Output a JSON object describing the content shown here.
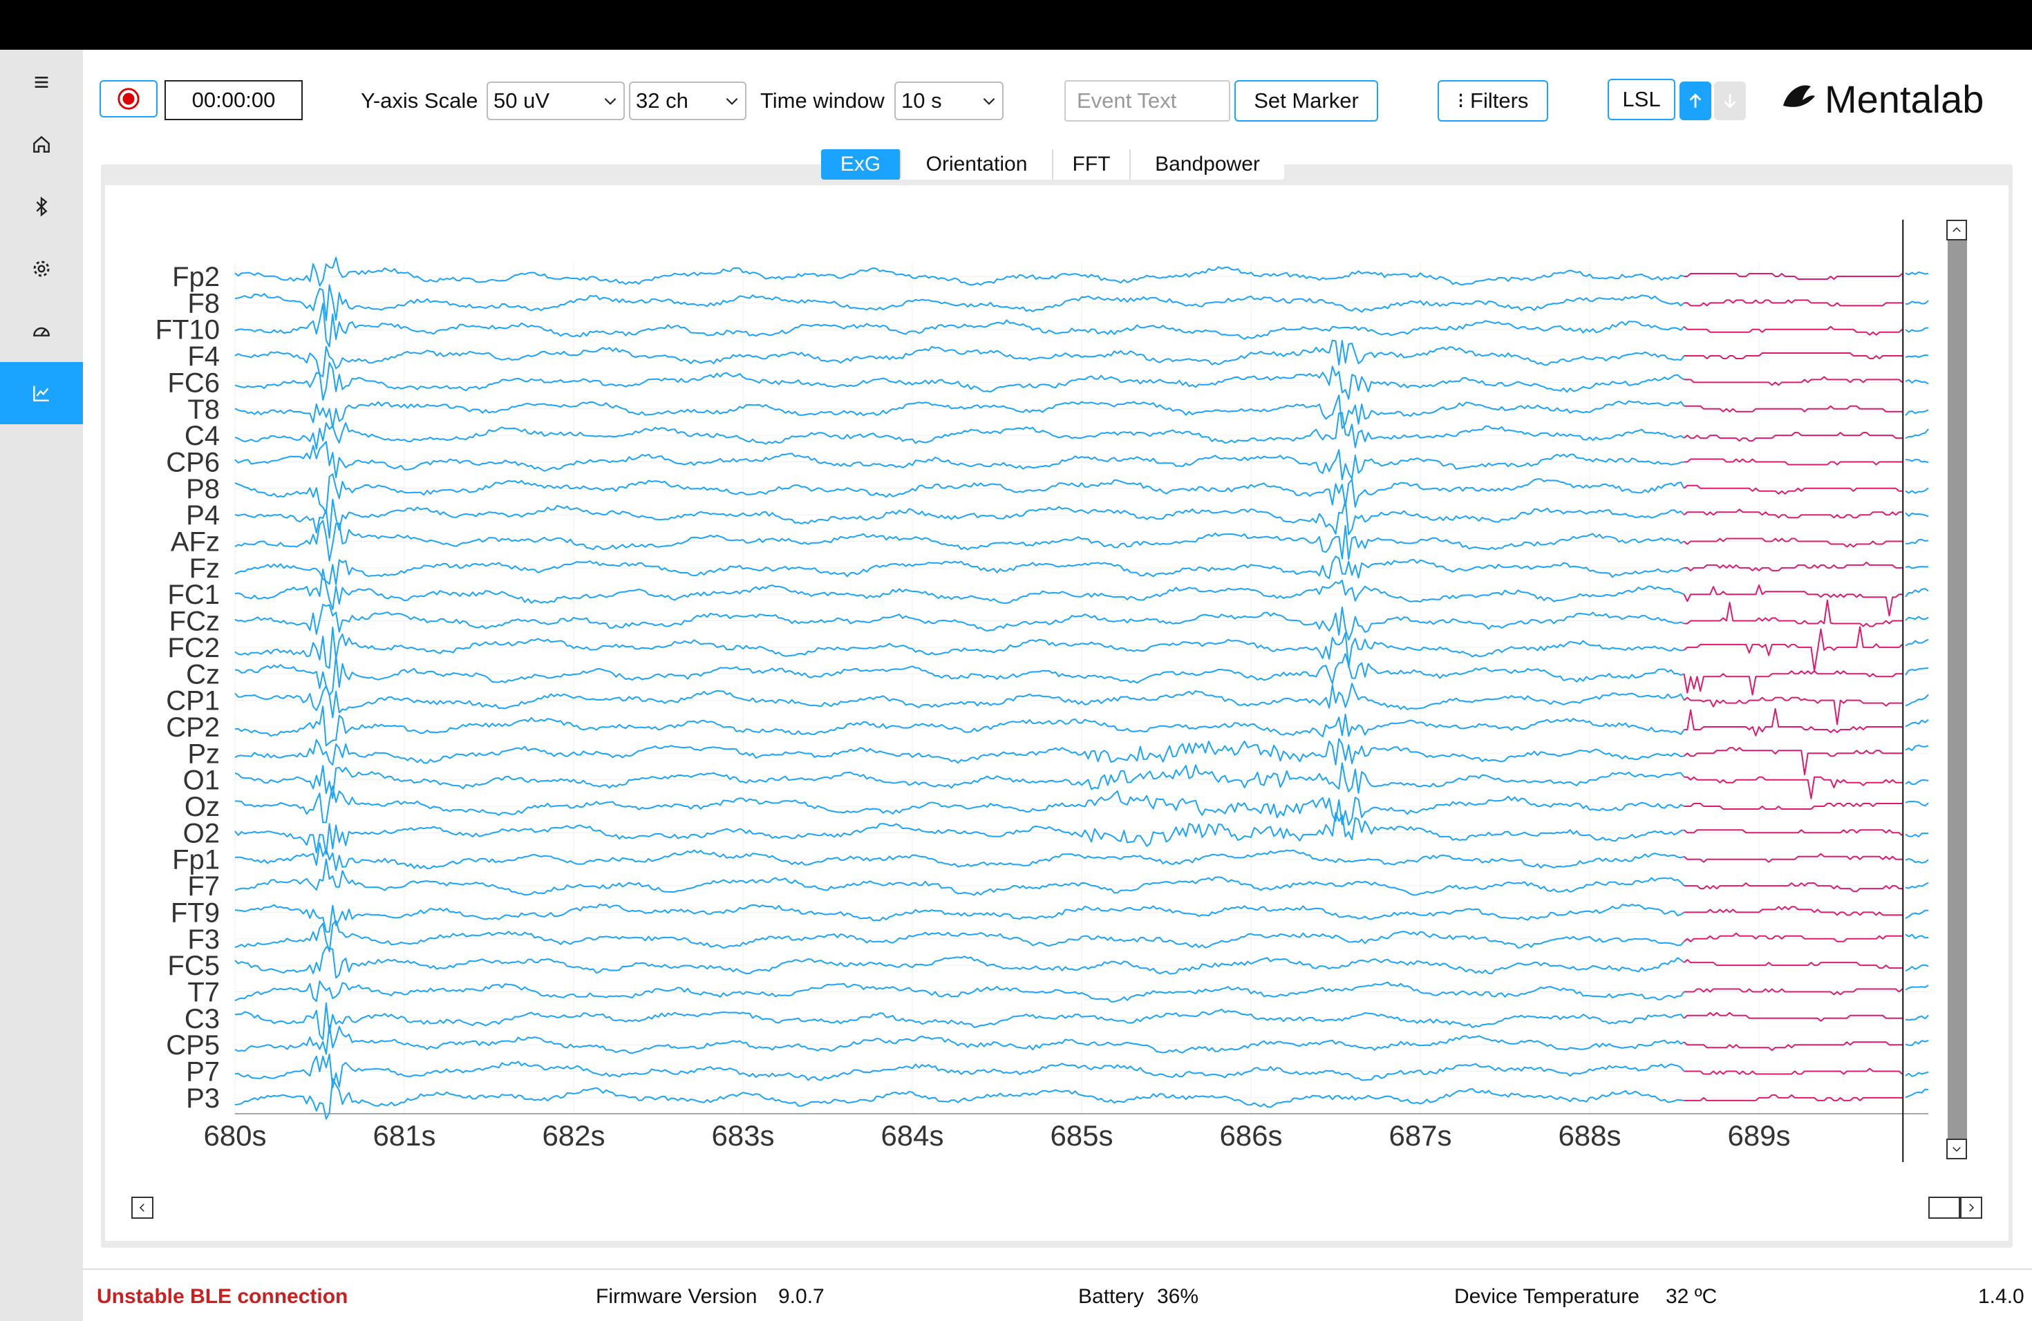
{
  "sidebar": {
    "items": [
      {
        "name": "menu-icon"
      },
      {
        "name": "home-icon"
      },
      {
        "name": "bluetooth-icon"
      },
      {
        "name": "gear-icon"
      },
      {
        "name": "dashboard-gauge-icon"
      },
      {
        "name": "chart-icon",
        "active": true
      }
    ]
  },
  "toolbar": {
    "record_icon": "record-icon",
    "timer": "00:00:00",
    "yscale_label": "Y-axis Scale",
    "yscale_value": "50 uV",
    "channels_value": "32 ch",
    "timewindow_label": "Time window",
    "timewindow_value": "10 s",
    "event_placeholder": "Event Text",
    "set_marker_label": "Set Marker",
    "filters_label": "⁝ Filters",
    "lsl_label": "LSL",
    "brand": "Mentalab"
  },
  "tabs": [
    {
      "label": "ExG",
      "active": true
    },
    {
      "label": "Orientation",
      "active": false
    },
    {
      "label": "FFT",
      "active": false
    },
    {
      "label": "Bandpower",
      "active": false
    }
  ],
  "chart_data": {
    "type": "line",
    "channels": [
      "Fp2",
      "F8",
      "FT10",
      "F4",
      "FC6",
      "T8",
      "C4",
      "CP6",
      "P8",
      "P4",
      "AFz",
      "Fz",
      "FC1",
      "FCz",
      "FC2",
      "Cz",
      "CP1",
      "CP2",
      "Pz",
      "O1",
      "Oz",
      "O2",
      "Fp1",
      "F7",
      "FT9",
      "F3",
      "FC5",
      "T7",
      "C3",
      "CP5",
      "P7",
      "P3"
    ],
    "x_ticks": [
      "680s",
      "681s",
      "682s",
      "683s",
      "684s",
      "685s",
      "686s",
      "687s",
      "688s",
      "689s"
    ],
    "xlim": [
      680,
      690
    ],
    "new_data_color": "#1aa3ff",
    "old_data_color": "#e0196e",
    "sweep_position_s": 689.85,
    "old_segment_start_s": 688.55,
    "grid": true
  },
  "status": {
    "connection": "Unstable BLE connection",
    "firmware_label": "Firmware Version",
    "firmware_value": "9.0.7",
    "battery_label": "Battery",
    "battery_value": "36%",
    "temp_label": "Device Temperature",
    "temp_value": "32 ºC",
    "version": "1.4.0"
  }
}
